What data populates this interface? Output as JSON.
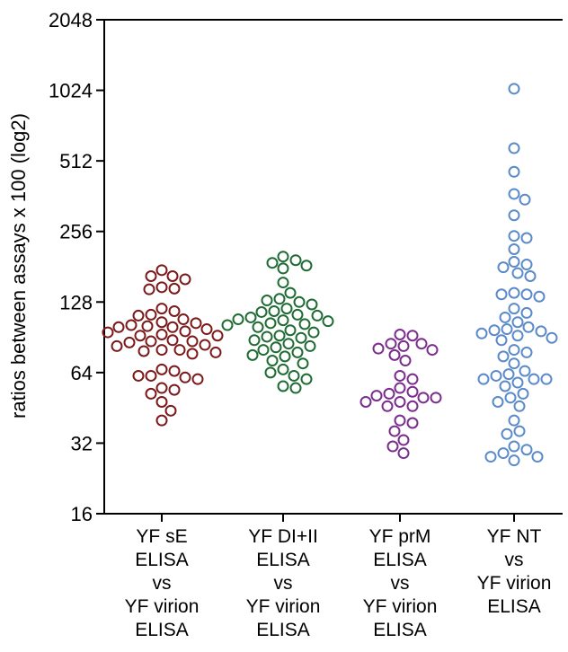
{
  "chart_data": {
    "type": "scatter",
    "title": "",
    "ylabel": "ratios between assays x 100 (log2)",
    "xlabel": "",
    "y_scale": "log2",
    "ylim": [
      16,
      2048
    ],
    "yticks": [
      16,
      32,
      64,
      128,
      256,
      512,
      1024,
      2048
    ],
    "ytick_labels": [
      "16",
      "32",
      "64",
      "128",
      "256",
      "512",
      "1024",
      "2048"
    ],
    "grid": false,
    "categories": [
      "YF sE ELISA vs YF virion ELISA",
      "YF DI+II ELISA vs YF virion ELISA",
      "YF prM ELISA vs YF virion ELISA",
      "YF NT vs YF virion ELISA"
    ],
    "category_lines": [
      [
        "YF sE",
        "ELISA",
        "vs",
        "YF virion",
        "ELISA"
      ],
      [
        "YF DI+II",
        "ELISA",
        "vs",
        "YF virion",
        "ELISA"
      ],
      [
        "YF prM",
        "ELISA",
        "vs",
        "YF virion",
        "ELISA"
      ],
      [
        "YF NT",
        "vs",
        "YF virion",
        "ELISA"
      ]
    ],
    "series": [
      {
        "color": "#7b1a1a",
        "values": [
          175,
          165,
          165,
          160,
          148,
          146,
          145,
          120,
          117,
          113,
          112,
          108,
          105,
          104,
          102,
          101,
          100,
          100,
          98,
          96,
          95,
          93,
          92,
          92,
          88,
          87,
          87,
          86,
          84,
          83,
          80,
          80,
          79,
          78,
          77,
          66,
          65,
          62,
          62,
          61,
          60,
          55,
          54,
          52,
          48,
          44,
          40
        ]
      },
      {
        "color": "#1f6b34",
        "values": [
          200,
          193,
          188,
          183,
          178,
          155,
          140,
          132,
          130,
          128,
          125,
          120,
          117,
          116,
          113,
          112,
          110,
          108,
          107,
          106,
          104,
          103,
          102,
          100,
          97,
          95,
          92,
          91,
          90,
          88,
          85,
          83,
          82,
          80,
          78,
          76,
          75,
          72,
          70,
          66,
          64,
          62,
          60,
          56,
          55
        ]
      },
      {
        "color": "#7b2d8e",
        "values": [
          93,
          92,
          85,
          85,
          83,
          81,
          80,
          76,
          72,
          62,
          60,
          55,
          53,
          52,
          51,
          50,
          50,
          48,
          48,
          46,
          46,
          40,
          39,
          36,
          33,
          31,
          29
        ]
      },
      {
        "color": "#5b8ac9",
        "values": [
          1040,
          580,
          460,
          370,
          350,
          300,
          245,
          240,
          215,
          190,
          185,
          180,
          170,
          165,
          140,
          138,
          138,
          135,
          120,
          115,
          110,
          105,
          100,
          98,
          97,
          96,
          94,
          92,
          90,
          88,
          80,
          78,
          75,
          70,
          65,
          63,
          62,
          60,
          60,
          60,
          58,
          56,
          52,
          50,
          48,
          46,
          40,
          36,
          35,
          31,
          30,
          29,
          28,
          28,
          27
        ]
      }
    ]
  }
}
